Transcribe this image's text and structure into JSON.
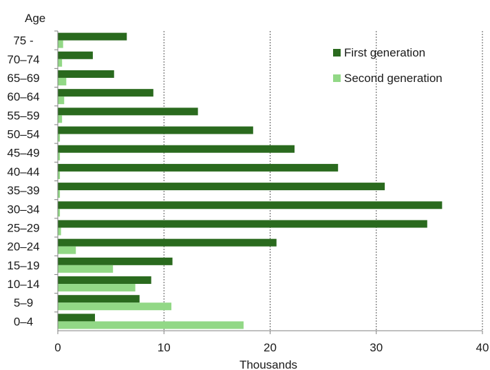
{
  "chart_data": {
    "type": "bar",
    "orientation": "horizontal",
    "title": "",
    "ylabel": "Age",
    "xlabel": "Thousands",
    "categories": [
      "0–4",
      "5–9",
      "10–14",
      "15–19",
      "20–24",
      "25–29",
      "30–34",
      "35–39",
      "40–44",
      "45–49",
      "50–54",
      "55–59",
      "60–64",
      "65–69",
      "70–74",
      "75 -"
    ],
    "xlim": [
      0,
      40
    ],
    "xticks": [
      0,
      10,
      20,
      30,
      40
    ],
    "grid": "vertical",
    "legend_position": "top-right",
    "series": [
      {
        "name": "First generation",
        "color": "#2a6a1e",
        "values": [
          3.5,
          7.7,
          8.8,
          10.8,
          20.6,
          34.8,
          36.2,
          30.8,
          26.4,
          22.3,
          18.4,
          13.2,
          9.0,
          5.3,
          3.3,
          6.5
        ]
      },
      {
        "name": "Second generation",
        "color": "#92d886",
        "values": [
          17.5,
          10.7,
          7.3,
          5.2,
          1.7,
          0.3,
          0.2,
          0.2,
          0.2,
          0.2,
          0.2,
          0.4,
          0.6,
          0.8,
          0.4,
          0.5
        ]
      }
    ]
  }
}
